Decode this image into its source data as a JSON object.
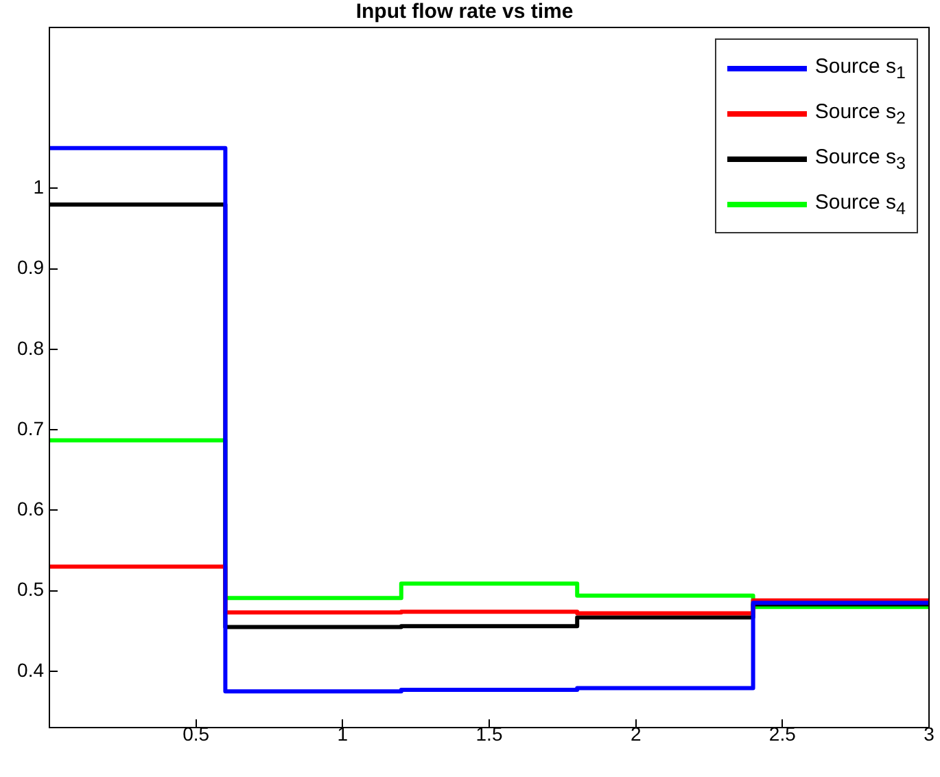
{
  "chart_data": {
    "type": "step",
    "title": "Input flow rate vs time",
    "x": [
      0,
      0.6,
      1.2,
      1.8,
      2.4,
      3
    ],
    "series": [
      {
        "name": "Source s$_{1}$",
        "color": "#0000ff",
        "values": [
          1.05,
          0.375,
          0.377,
          0.379,
          0.485,
          0.485
        ]
      },
      {
        "name": "Source s$_{2}$",
        "color": "#ff0000",
        "values": [
          0.53,
          0.473,
          0.474,
          0.472,
          0.488,
          0.488
        ]
      },
      {
        "name": "Source s$_{3}$",
        "color": "#000000",
        "values": [
          0.98,
          0.455,
          0.456,
          0.467,
          0.483,
          0.483
        ]
      },
      {
        "name": "Source s$_{4}$",
        "color": "#00ff00",
        "values": [
          0.687,
          0.491,
          0.509,
          0.494,
          0.48,
          0.48
        ]
      }
    ],
    "xlim": [
      0,
      3
    ],
    "xticks": [
      0.5,
      1,
      1.5,
      2,
      2.5,
      3
    ],
    "ylim": [
      0.33,
      1.2
    ],
    "yticks": [
      0.4,
      0.5,
      0.6,
      0.7,
      0.8,
      0.9,
      1
    ],
    "grid": false,
    "legend": "top right",
    "line_style": "solid",
    "marker": "none"
  }
}
